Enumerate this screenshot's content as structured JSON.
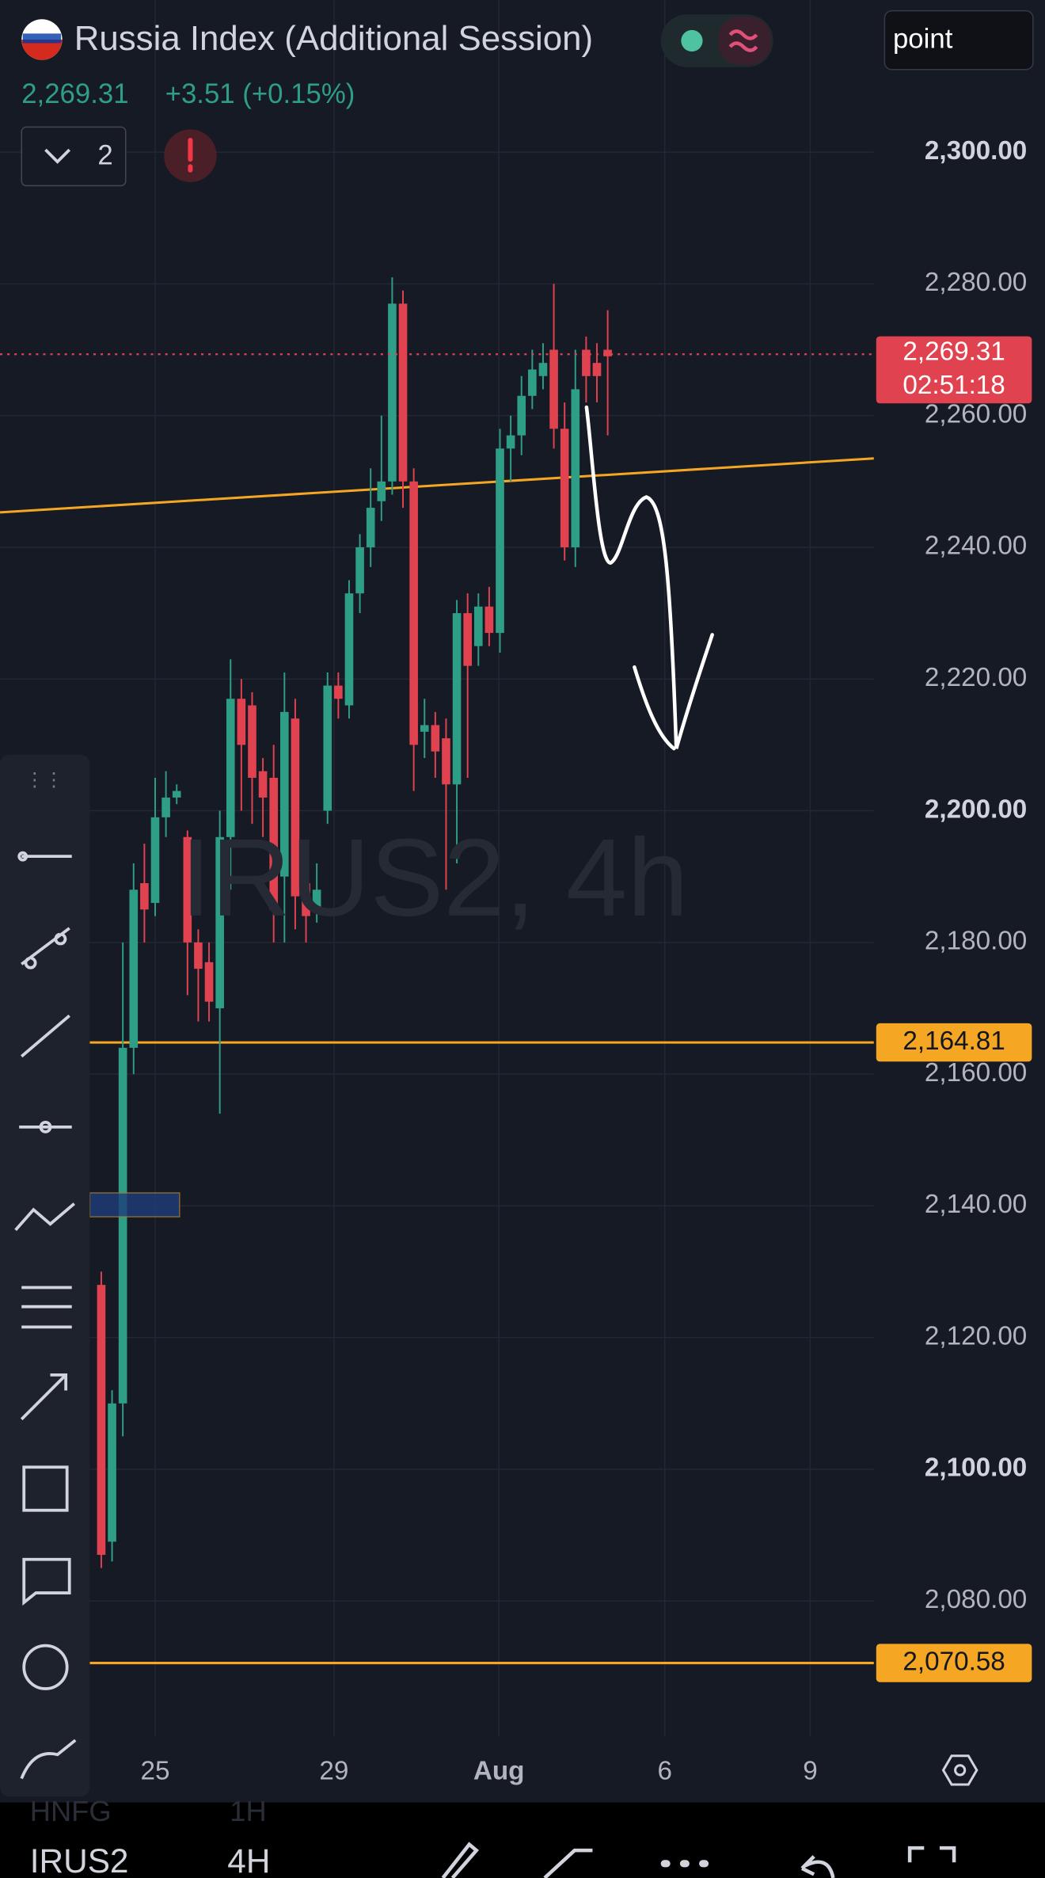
{
  "header": {
    "title": "Russia Index (Additional Session)",
    "price": "2,269.31",
    "change": "+3.51 (+0.15%)",
    "indicator_count": "2",
    "search": "point"
  },
  "chart_data": {
    "type": "candlestick",
    "watermark": "IRUS2, 4h",
    "open": [
      2128,
      2089,
      2110,
      2164,
      2189,
      2186,
      2199,
      2202,
      2196,
      2180,
      2177,
      2170,
      2196,
      2217,
      2216,
      2206,
      2205,
      2190,
      2214,
      2189,
      2185,
      2200,
      2219,
      2216,
      2233,
      2240,
      2247,
      2250,
      2277,
      2250,
      2212,
      2213,
      2211,
      2204,
      2230,
      2225,
      2231,
      2227,
      2255,
      2257,
      2263,
      2266,
      2270,
      2258,
      2240,
      2270,
      2268,
      2270
    ],
    "high": [
      2130,
      2112,
      2180,
      2192,
      2195,
      2205,
      2206,
      2204,
      2197,
      2182,
      2180,
      2200,
      2223,
      2220,
      2218,
      2208,
      2210,
      2221,
      2217,
      2192,
      2192,
      2221,
      2221,
      2235,
      2242,
      2252,
      2260,
      2281,
      2279,
      2252,
      2217,
      2215,
      2214,
      2232,
      2233,
      2233,
      2234,
      2258,
      2260,
      2266,
      2270,
      2271,
      2280,
      2262,
      2270,
      2272,
      2271,
      2276
    ],
    "low": [
      2085,
      2086,
      2105,
      2160,
      2180,
      2184,
      2196,
      2201,
      2172,
      2168,
      2168,
      2154,
      2188,
      2200,
      2198,
      2196,
      2180,
      2180,
      2182,
      2180,
      2183,
      2198,
      2214,
      2214,
      2230,
      2237,
      2244,
      2248,
      2246,
      2203,
      2208,
      2205,
      2188,
      2192,
      2205,
      2222,
      2225,
      2224,
      2250,
      2254,
      2261,
      2264,
      2255,
      2238,
      2237,
      2262,
      2262,
      2257
    ],
    "close": [
      2087,
      2110,
      2164,
      2188,
      2185,
      2199,
      2202,
      2203,
      2180,
      2176,
      2171,
      2196,
      2217,
      2210,
      2205,
      2202,
      2185,
      2215,
      2187,
      2184,
      2188,
      2219,
      2217,
      2233,
      2240,
      2246,
      2250,
      2277,
      2250,
      2210,
      2213,
      2209,
      2204,
      2230,
      2222,
      2231,
      2227,
      2255,
      2257,
      2263,
      2267,
      2268,
      2258,
      2240,
      2264,
      2266,
      2266,
      2269
    ],
    "up_color": "#2f9e86",
    "down_color": "#e0434f",
    "xlim": [
      -9.4,
      71.7
    ],
    "xticks": [
      {
        "value": 5,
        "label": "25"
      },
      {
        "value": 21.6,
        "label": "29"
      },
      {
        "value": 36.9,
        "label": "Aug"
      },
      {
        "value": 52.3,
        "label": "6"
      },
      {
        "value": 65.8,
        "label": "9"
      }
    ],
    "ylim": [
      2059.4,
      2323.1
    ],
    "yticks": [
      {
        "value": 2080,
        "label": "2,080.00"
      },
      {
        "value": 2100,
        "label": "2,100.00"
      },
      {
        "value": 2120,
        "label": "2,120.00"
      },
      {
        "value": 2140,
        "label": "2,140.00"
      },
      {
        "value": 2160,
        "label": "2,160.00"
      },
      {
        "value": 2180,
        "label": "2,180.00"
      },
      {
        "value": 2200,
        "label": "2,200.00"
      },
      {
        "value": 2220,
        "label": "2,220.00"
      },
      {
        "value": 2240,
        "label": "2,240.00"
      },
      {
        "value": 2260,
        "label": "2,260.00"
      },
      {
        "value": 2280,
        "label": "2,280.00"
      },
      {
        "value": 2300,
        "label": "2,300.00"
      }
    ],
    "grid": true,
    "last_price": {
      "value": 2269.31,
      "label": "2,269.31",
      "countdown": "02:51:18",
      "color": "#e0434f"
    },
    "levels": [
      {
        "value": 2164.81,
        "label": "2,164.81"
      },
      {
        "value": 2070.58,
        "label": "2,070.58"
      }
    ],
    "level_color": "#f5a623",
    "trendline": [
      2245.3,
      2253.5
    ]
  },
  "bottom_bar": {
    "prev_symbol": "HNFG",
    "prev_interval": "1H",
    "symbol": "IRUS2",
    "interval": "4H"
  }
}
